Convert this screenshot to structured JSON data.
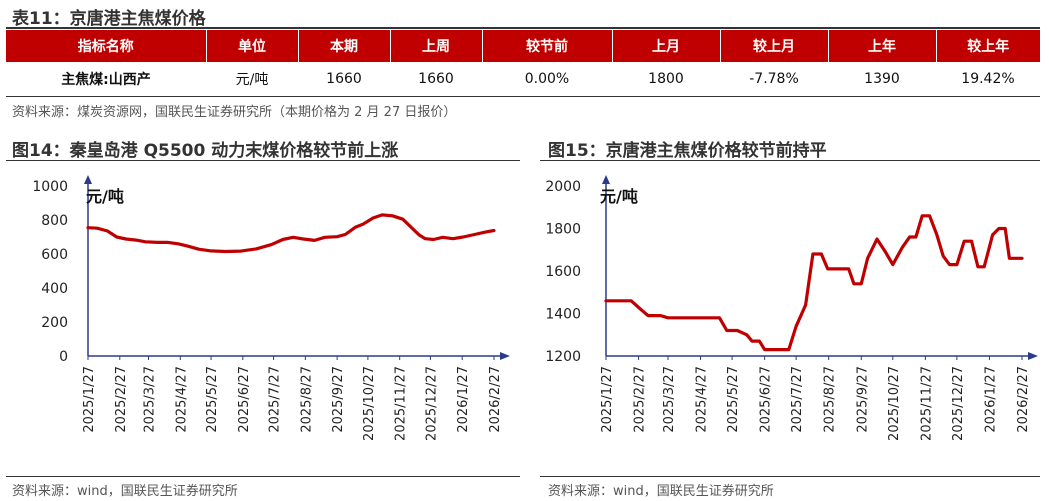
{
  "table": {
    "title": "表11：京唐港主焦煤价格",
    "headers": [
      "指标名称",
      "单位",
      "本期",
      "上周",
      "较节前",
      "上月",
      "较上月",
      "上年",
      "较上年"
    ],
    "rows": [
      [
        "主焦煤:山西产",
        "元/吨",
        "1660",
        "1660",
        "0.00%",
        "1800",
        "-7.78%",
        "1390",
        "19.42%"
      ]
    ],
    "source": "资料来源：煤炭资源网，国联民生证券研究所（本期价格为 2 月 27 日报价）"
  },
  "colors": {
    "accent": "#c00000",
    "axis": "#2b3a8c"
  },
  "charts": [
    {
      "title": "图14：秦皇岛港 Q5500 动力末煤价格较节前上涨",
      "source": "资料来源：wind，国联民生证券研究所"
    },
    {
      "title": "图15：京唐港主焦煤价格较节前持平",
      "source": "资料来源：wind，国联民生证券研究所"
    }
  ],
  "chart_data": [
    {
      "type": "line",
      "title": "图14：秦皇岛港 Q5500 动力末煤价格较节前上涨",
      "ylabel": "元/吨",
      "ylim": [
        0,
        1000
      ],
      "yticks": [
        0,
        200,
        400,
        600,
        800,
        1000
      ],
      "x_ticks": [
        "2025/1/27",
        "2025/2/27",
        "2025/3/27",
        "2025/4/27",
        "2025/5/27",
        "2025/6/27",
        "2025/7/27",
        "2025/8/27",
        "2025/9/27",
        "2025/10/27",
        "2025/11/27",
        "2025/12/27",
        "2026/1/27",
        "2026/2/27"
      ],
      "points": [
        [
          "2025/1/27",
          755
        ],
        [
          "2025/2/5",
          752
        ],
        [
          "2025/2/15",
          735
        ],
        [
          "2025/2/24",
          700
        ],
        [
          "2025/3/5",
          688
        ],
        [
          "2025/3/15",
          682
        ],
        [
          "2025/3/24",
          672
        ],
        [
          "2025/4/5",
          668
        ],
        [
          "2025/4/15",
          668
        ],
        [
          "2025/4/25",
          660
        ],
        [
          "2025/5/5",
          645
        ],
        [
          "2025/5/15",
          628
        ],
        [
          "2025/5/27",
          618
        ],
        [
          "2025/6/10",
          615
        ],
        [
          "2025/6/25",
          617
        ],
        [
          "2025/7/10",
          630
        ],
        [
          "2025/7/25",
          655
        ],
        [
          "2025/8/5",
          685
        ],
        [
          "2025/8/15",
          698
        ],
        [
          "2025/8/25",
          688
        ],
        [
          "2025/9/5",
          680
        ],
        [
          "2025/9/15",
          698
        ],
        [
          "2025/9/27",
          702
        ],
        [
          "2025/10/5",
          715
        ],
        [
          "2025/10/15",
          758
        ],
        [
          "2025/10/22",
          775
        ],
        [
          "2025/11/1",
          812
        ],
        [
          "2025/11/10",
          830
        ],
        [
          "2025/11/20",
          825
        ],
        [
          "2025/11/30",
          805
        ],
        [
          "2025/12/8",
          758
        ],
        [
          "2025/12/16",
          712
        ],
        [
          "2025/12/22",
          690
        ],
        [
          "2025/12/30",
          685
        ],
        [
          "2026/1/8",
          698
        ],
        [
          "2026/1/18",
          690
        ],
        [
          "2026/1/28",
          700
        ],
        [
          "2026/2/8",
          715
        ],
        [
          "2026/2/18",
          728
        ],
        [
          "2026/2/27",
          738
        ]
      ]
    },
    {
      "type": "line",
      "title": "图15：京唐港主焦煤价格较节前持平",
      "ylabel": "元/吨",
      "ylim": [
        1200,
        2000
      ],
      "yticks": [
        1200,
        1400,
        1600,
        1800,
        2000
      ],
      "x_ticks": [
        "2025/1/27",
        "2025/2/27",
        "2025/3/27",
        "2025/4/27",
        "2025/5/27",
        "2025/6/27",
        "2025/7/27",
        "2025/8/27",
        "2025/9/27",
        "2025/10/27",
        "2025/11/27",
        "2025/12/27",
        "2026/1/27",
        "2026/2/27"
      ],
      "points": [
        [
          "2025/1/27",
          1460
        ],
        [
          "2025/2/20",
          1460
        ],
        [
          "2025/3/1",
          1420
        ],
        [
          "2025/3/8",
          1390
        ],
        [
          "2025/3/20",
          1390
        ],
        [
          "2025/3/27",
          1380
        ],
        [
          "2025/4/27",
          1380
        ],
        [
          "2025/5/15",
          1380
        ],
        [
          "2025/5/22",
          1320
        ],
        [
          "2025/6/1",
          1320
        ],
        [
          "2025/6/10",
          1300
        ],
        [
          "2025/6/15",
          1270
        ],
        [
          "2025/6/22",
          1270
        ],
        [
          "2025/6/27",
          1230
        ],
        [
          "2025/7/20",
          1230
        ],
        [
          "2025/7/27",
          1340
        ],
        [
          "2025/8/5",
          1440
        ],
        [
          "2025/8/12",
          1680
        ],
        [
          "2025/8/20",
          1680
        ],
        [
          "2025/8/26",
          1610
        ],
        [
          "2025/9/15",
          1610
        ],
        [
          "2025/9/20",
          1540
        ],
        [
          "2025/9/27",
          1540
        ],
        [
          "2025/10/3",
          1660
        ],
        [
          "2025/10/12",
          1750
        ],
        [
          "2025/10/20",
          1690
        ],
        [
          "2025/10/27",
          1630
        ],
        [
          "2025/11/5",
          1710
        ],
        [
          "2025/11/12",
          1760
        ],
        [
          "2025/11/18",
          1760
        ],
        [
          "2025/11/24",
          1860
        ],
        [
          "2025/12/1",
          1860
        ],
        [
          "2025/12/8",
          1770
        ],
        [
          "2025/12/14",
          1670
        ],
        [
          "2025/12/20",
          1630
        ],
        [
          "2025/12/27",
          1630
        ],
        [
          "2026/1/3",
          1740
        ],
        [
          "2026/1/10",
          1740
        ],
        [
          "2026/1/16",
          1620
        ],
        [
          "2026/1/22",
          1620
        ],
        [
          "2026/1/30",
          1770
        ],
        [
          "2026/2/5",
          1800
        ],
        [
          "2026/2/11",
          1800
        ],
        [
          "2026/2/15",
          1660
        ],
        [
          "2026/2/27",
          1660
        ]
      ]
    }
  ]
}
